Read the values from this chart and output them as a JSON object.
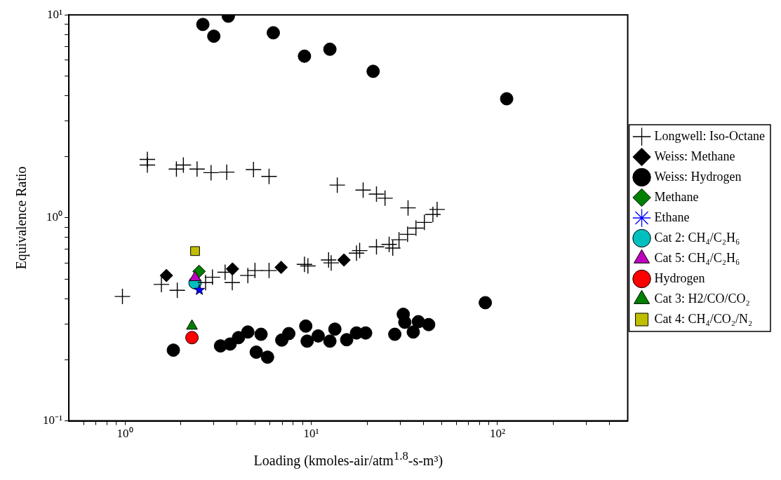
{
  "chart_data": {
    "type": "scatter",
    "xlabel": "Loading (kmoles-air/atm$^{1.8}$-s-m³)",
    "ylabel": "Equivalence Ratio",
    "log": "xy",
    "grid": false,
    "legend": "right",
    "xlim": [
      0.5,
      500
    ],
    "ylim": [
      0.1,
      10
    ],
    "xticks": [
      {
        "value": 0.6,
        "label": null
      },
      {
        "value": 0.7,
        "label": null
      },
      {
        "value": 0.8,
        "label": null
      },
      {
        "value": 0.9,
        "label": null
      },
      {
        "value": 1,
        "label": "10⁰"
      },
      {
        "value": 2,
        "label": null
      },
      {
        "value": 3,
        "label": null
      },
      {
        "value": 4,
        "label": null
      },
      {
        "value": 5,
        "label": null
      },
      {
        "value": 6,
        "label": null
      },
      {
        "value": 7,
        "label": null
      },
      {
        "value": 8,
        "label": null
      },
      {
        "value": 9,
        "label": null
      },
      {
        "value": 10,
        "label": "10¹"
      },
      {
        "value": 20,
        "label": null
      },
      {
        "value": 30,
        "label": null
      },
      {
        "value": 40,
        "label": null
      },
      {
        "value": 50,
        "label": null
      },
      {
        "value": 60,
        "label": null
      },
      {
        "value": 70,
        "label": null
      },
      {
        "value": 80,
        "label": null
      },
      {
        "value": 90,
        "label": null
      },
      {
        "value": 100,
        "label": "10²"
      },
      {
        "value": 200,
        "label": null
      },
      {
        "value": 300,
        "label": null
      },
      {
        "value": 400,
        "label": null
      }
    ],
    "yticks": [
      {
        "value": 0.1,
        "label": "10⁻¹"
      },
      {
        "value": 0.2,
        "label": null
      },
      {
        "value": 0.3,
        "label": null
      },
      {
        "value": 0.4,
        "label": null
      },
      {
        "value": 0.5,
        "label": null
      },
      {
        "value": 0.6,
        "label": null
      },
      {
        "value": 0.7,
        "label": null
      },
      {
        "value": 0.8,
        "label": null
      },
      {
        "value": 0.9,
        "label": null
      },
      {
        "value": 1,
        "label": "10⁰"
      },
      {
        "value": 2,
        "label": null
      },
      {
        "value": 3,
        "label": null
      },
      {
        "value": 4,
        "label": null
      },
      {
        "value": 5,
        "label": null
      },
      {
        "value": 6,
        "label": null
      },
      {
        "value": 7,
        "label": null
      },
      {
        "value": 8,
        "label": null
      },
      {
        "value": 9,
        "label": null
      },
      {
        "value": 10,
        "label": "10¹"
      }
    ],
    "series": [
      {
        "name": "Longwell: Iso-Octane",
        "color": "#000000",
        "marker": "cross",
        "x": [
          1.32,
          1.32,
          1.89,
          2.06,
          2.44,
          2.9,
          3.52,
          4.9,
          5.94,
          13.8,
          19,
          22.4,
          24.9,
          33.1,
          0.97,
          1.57,
          1.91,
          2.71,
          2.95,
          3.45,
          3.77,
          4.57,
          4.99,
          5.94,
          9.2,
          9.6,
          12.4,
          12.8,
          17.5,
          18.2,
          22.4,
          26.2,
          27.4,
          29.6,
          32.9,
          36.5,
          40.5,
          45,
          47.4
        ],
        "values": [
          1.94,
          1.82,
          1.74,
          1.82,
          1.74,
          1.67,
          1.68,
          1.73,
          1.6,
          1.45,
          1.37,
          1.31,
          1.25,
          1.12,
          0.41,
          0.47,
          0.44,
          0.48,
          0.51,
          0.54,
          0.48,
          0.52,
          0.55,
          0.55,
          0.59,
          0.58,
          0.62,
          0.6,
          0.67,
          0.69,
          0.72,
          0.74,
          0.71,
          0.78,
          0.83,
          0.89,
          0.95,
          1.04,
          1.1
        ]
      },
      {
        "name": "Weiss: Methane",
        "color": "#000000",
        "marker": "diamond",
        "x": [
          1.67,
          3.78,
          6.9,
          15
        ],
        "values": [
          0.52,
          0.56,
          0.57,
          0.62
        ]
      },
      {
        "name": "Weiss: Hydrogen",
        "color": "#000000",
        "marker": "circle",
        "x": [
          2.62,
          3,
          3.59,
          6.26,
          9.2,
          12.6,
          21.5,
          112,
          1.82,
          3.26,
          3.67,
          4.07,
          4.57,
          5.38,
          5.07,
          5.83,
          6.95,
          7.58,
          9.35,
          9.51,
          10.9,
          12.6,
          13.4,
          15.5,
          17.5,
          19.6,
          28.1,
          31.2,
          31.8,
          35.3,
          37.6,
          42.7,
          86
        ],
        "values": [
          8.97,
          7.85,
          9.85,
          8.16,
          6.26,
          6.77,
          5.27,
          3.86,
          0.223,
          0.234,
          0.239,
          0.257,
          0.274,
          0.267,
          0.218,
          0.206,
          0.25,
          0.269,
          0.293,
          0.247,
          0.262,
          0.247,
          0.283,
          0.251,
          0.271,
          0.271,
          0.267,
          0.335,
          0.306,
          0.274,
          0.308,
          0.298,
          0.382
        ]
      },
      {
        "name": "Methane",
        "color": "#008000",
        "marker": "diamond",
        "x": [
          2.5
        ],
        "values": [
          0.545
        ]
      },
      {
        "name": "Ethane",
        "color": "#0000ff",
        "marker": "star",
        "x": [
          2.51
        ],
        "values": [
          0.441
        ]
      },
      {
        "name": "Cat 2: CH₄/C₂H₆",
        "color": "#00bfbf",
        "marker": "circle",
        "x": [
          2.38
        ],
        "values": [
          0.479
        ]
      },
      {
        "name": "Cat 5: CH₄/C₂H₆",
        "color": "#bf00bf",
        "marker": "triangle",
        "x": [
          2.38
        ],
        "values": [
          0.508
        ]
      },
      {
        "name": "Hydrogen",
        "color": "#ff0000",
        "marker": "circle",
        "x": [
          2.29
        ],
        "values": [
          0.257
        ]
      },
      {
        "name": "Cat 3: H2/CO/CO₂",
        "color": "#008000",
        "marker": "triangle",
        "x": [
          2.29
        ],
        "values": [
          0.293
        ]
      },
      {
        "name": "Cat 4: CH₄/CO₂/N₂",
        "color": "#bfbf00",
        "marker": "square",
        "x": [
          2.38
        ],
        "values": [
          0.686
        ]
      }
    ]
  }
}
